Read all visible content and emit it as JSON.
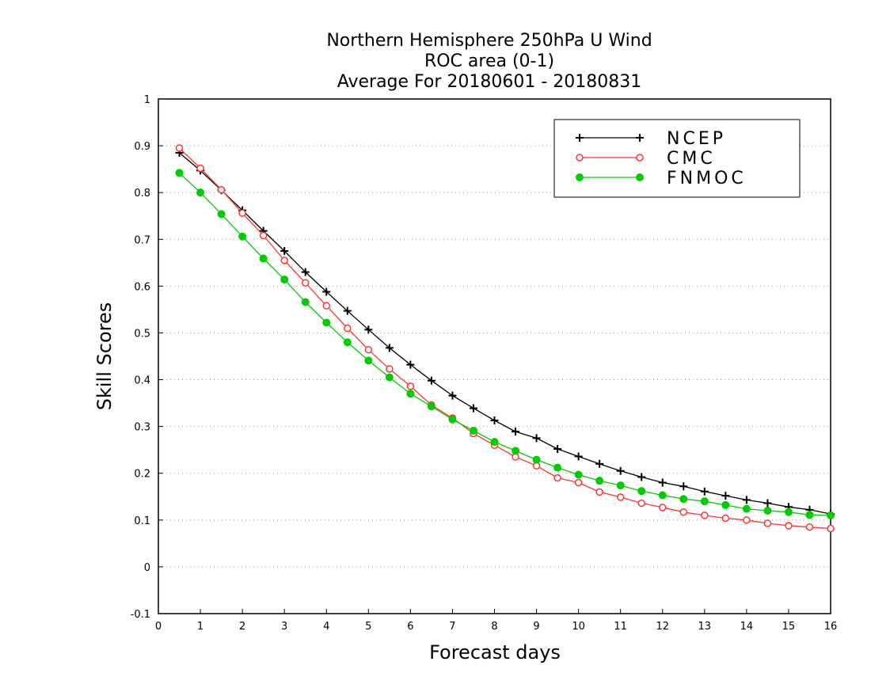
{
  "chart_data": {
    "type": "line",
    "title_lines": [
      "Northern Hemisphere 250hPa U Wind",
      "ROC area (0-1)",
      "Average For 20180601 - 20180831"
    ],
    "xlabel": "Forecast days",
    "ylabel": "Skill Scores",
    "xlim": [
      0,
      16
    ],
    "ylim": [
      -0.1,
      1
    ],
    "x_ticks": [
      "0",
      "1",
      "2",
      "3",
      "4",
      "5",
      "6",
      "7",
      "8",
      "9",
      "10",
      "11",
      "12",
      "13",
      "14",
      "15",
      "16"
    ],
    "y_ticks": [
      "-0.1",
      "0",
      "0.1",
      "0.2",
      "0.3",
      "0.4",
      "0.5",
      "0.6",
      "0.7",
      "0.8",
      "0.9",
      "1"
    ],
    "grid": true,
    "legend_position": "top-right",
    "x": [
      0.5,
      1,
      1.5,
      2,
      2.5,
      3,
      3.5,
      4,
      4.5,
      5,
      5.5,
      6,
      6.5,
      7,
      7.5,
      8,
      8.5,
      9,
      9.5,
      10,
      10.5,
      11,
      11.5,
      12,
      12.5,
      13,
      13.5,
      14,
      14.5,
      15,
      15.5,
      16
    ],
    "series": [
      {
        "name": "NCEP",
        "color": "#000000",
        "marker": "plus",
        "values": [
          0.885,
          0.847,
          0.805,
          0.762,
          0.718,
          0.675,
          0.63,
          0.588,
          0.547,
          0.507,
          0.468,
          0.432,
          0.398,
          0.366,
          0.339,
          0.313,
          0.289,
          0.275,
          0.252,
          0.236,
          0.22,
          0.205,
          0.192,
          0.18,
          0.172,
          0.161,
          0.152,
          0.143,
          0.136,
          0.128,
          0.122,
          0.113
        ]
      },
      {
        "name": "CMC",
        "color": "#ff3333",
        "marker": "open-circle",
        "values": [
          0.895,
          0.852,
          0.806,
          0.756,
          0.708,
          0.655,
          0.607,
          0.558,
          0.51,
          0.464,
          0.423,
          0.386,
          0.346,
          0.318,
          0.285,
          0.26,
          0.235,
          0.216,
          0.19,
          0.18,
          0.16,
          0.149,
          0.136,
          0.127,
          0.117,
          0.11,
          0.104,
          0.1,
          0.093,
          0.088,
          0.085,
          0.082
        ]
      },
      {
        "name": "FNMOC",
        "color": "#00cc00",
        "marker": "filled-circle",
        "values": [
          0.842,
          0.8,
          0.754,
          0.706,
          0.659,
          0.614,
          0.566,
          0.522,
          0.48,
          0.441,
          0.405,
          0.37,
          0.343,
          0.315,
          0.291,
          0.267,
          0.248,
          0.229,
          0.212,
          0.197,
          0.184,
          0.174,
          0.162,
          0.153,
          0.145,
          0.14,
          0.132,
          0.124,
          0.12,
          0.117,
          0.111,
          0.11
        ]
      }
    ]
  }
}
